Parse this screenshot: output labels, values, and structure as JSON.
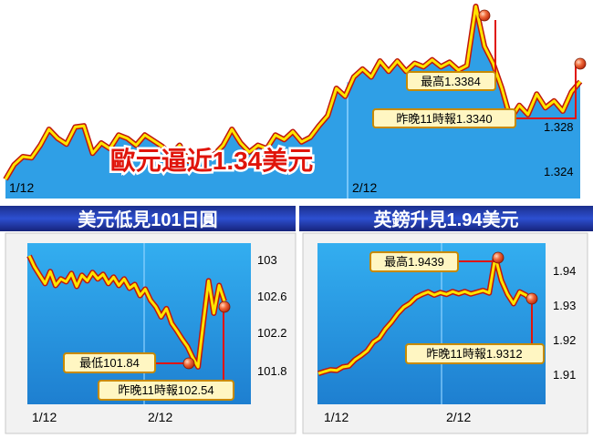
{
  "chart_data": [
    {
      "type": "line",
      "title": "歐元逼近1.34美元",
      "x_ticks": [
        "1/12",
        "2/12"
      ],
      "y_ticks": [
        1.328,
        1.324
      ],
      "series": [
        {
          "values": [
            1.3232,
            1.3245,
            1.3252,
            1.3251,
            1.3262,
            1.3276,
            1.3268,
            1.3263,
            1.3278,
            1.3279,
            1.3255,
            1.3264,
            1.3259,
            1.3271,
            1.3268,
            1.3262,
            1.3271,
            1.3266,
            1.3261,
            1.3254,
            1.3262,
            1.3248,
            1.3253,
            1.3249,
            1.3254,
            1.3262,
            1.3276,
            1.3264,
            1.3256,
            1.3262,
            1.3259,
            1.3271,
            1.3267,
            1.3274,
            1.3265,
            1.3269,
            1.3279,
            1.3288,
            1.3312,
            1.3305,
            1.3322,
            1.3329,
            1.3322,
            1.3336,
            1.3327,
            1.3336,
            1.3327,
            1.3334,
            1.3331,
            1.3337,
            1.3331,
            1.3335,
            1.3328,
            1.3332,
            1.3384,
            1.3349,
            1.3334,
            1.3312,
            1.3285,
            1.3297,
            1.3289,
            1.3307,
            1.3295,
            1.3301,
            1.3292,
            1.3309,
            1.3318
          ]
        }
      ],
      "annotations": [
        {
          "text": "最高1.3384",
          "value": 1.3384
        },
        {
          "text": "昨晚11時報1.3340",
          "value": 1.334
        }
      ]
    },
    {
      "type": "line",
      "title": "美元低見101日圓",
      "x_ticks": [
        "1/12",
        "2/12"
      ],
      "y_ticks": [
        103.0,
        102.6,
        102.2,
        101.8
      ],
      "series": [
        {
          "values": [
            103.04,
            102.92,
            102.83,
            102.74,
            102.87,
            102.72,
            102.79,
            102.76,
            102.85,
            102.71,
            102.83,
            102.77,
            102.86,
            102.79,
            102.84,
            102.74,
            102.81,
            102.72,
            102.79,
            102.69,
            102.73,
            102.61,
            102.68,
            102.56,
            102.49,
            102.38,
            102.47,
            102.31,
            102.23,
            102.14,
            102.06,
            101.94,
            101.84,
            102.32,
            102.77,
            102.42,
            102.72,
            102.55
          ]
        }
      ],
      "annotations": [
        {
          "text": "最低101.84",
          "value": 101.84
        },
        {
          "text": "昨晚11時報102.54",
          "value": 102.54
        }
      ]
    },
    {
      "type": "line",
      "title": "英鎊升見1.94美元",
      "x_ticks": [
        "1/12",
        "2/12"
      ],
      "y_ticks": [
        1.94,
        1.93,
        1.92,
        1.91
      ],
      "series": [
        {
          "values": [
            1.9102,
            1.9108,
            1.9113,
            1.9111,
            1.9121,
            1.9124,
            1.9142,
            1.9154,
            1.9168,
            1.9193,
            1.9205,
            1.9231,
            1.9251,
            1.9275,
            1.9294,
            1.9305,
            1.9322,
            1.9331,
            1.9338,
            1.9329,
            1.9336,
            1.9331,
            1.9339,
            1.9333,
            1.9339,
            1.9332,
            1.9337,
            1.9342,
            1.9335,
            1.9439,
            1.9371,
            1.9331,
            1.9304,
            1.9338,
            1.9329,
            1.9312
          ]
        }
      ],
      "annotations": [
        {
          "text": "最高1.9439",
          "value": 1.9439
        },
        {
          "text": "昨晚11時報1.9312",
          "value": 1.9312
        }
      ]
    }
  ]
}
